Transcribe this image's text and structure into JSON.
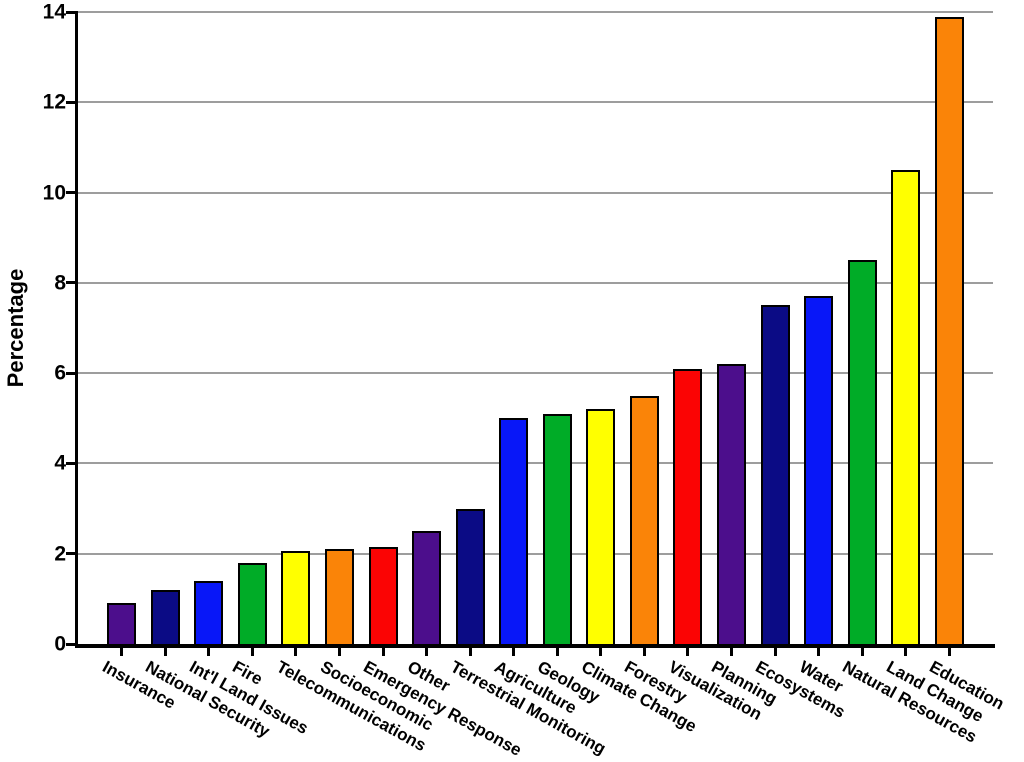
{
  "chart_data": {
    "type": "bar",
    "title": "",
    "xlabel": "",
    "ylabel": "Percentage",
    "ylim": [
      0,
      14
    ],
    "yticks": [
      0,
      2,
      4,
      6,
      8,
      10,
      12,
      14
    ],
    "grid": true,
    "legend": false,
    "categories": [
      "Insurance",
      "National Security",
      "Int'l Land Issues",
      "Fire",
      "Telecommunications",
      "Socioeconomic",
      "Emergency Response",
      "Other",
      "Terrestrial Monitoring",
      "Agriculture",
      "Geology",
      "Climate Change",
      "Forestry",
      "Visualization",
      "Planning",
      "Ecosystems",
      "Water",
      "Natural Resources",
      "Land Change",
      "Education"
    ],
    "values": [
      0.9,
      1.2,
      1.4,
      1.8,
      2.05,
      2.1,
      2.15,
      2.5,
      3.0,
      5.0,
      5.1,
      5.2,
      5.5,
      6.1,
      6.2,
      7.5,
      7.7,
      8.5,
      10.5,
      13.9
    ],
    "bar_colors": [
      "#4C0E8C",
      "#0B0B85",
      "#0817F8",
      "#00AC27",
      "#FFFF00",
      "#FA8408",
      "#FB0404",
      "#4C0E8C",
      "#0B0B85",
      "#0817F8",
      "#00AC27",
      "#FFFF00",
      "#FA8408",
      "#FB0404",
      "#4C0E8C",
      "#0B0B85",
      "#0817F8",
      "#00AC27",
      "#FFFF00",
      "#FA8408"
    ],
    "colors": {
      "palette_cycle": [
        "#4C0E8C",
        "#0B0B85",
        "#0817F8",
        "#00AC27",
        "#FFFF00",
        "#FA8408",
        "#FB0404"
      ],
      "gridline": "#9D9D9D",
      "axis": "#000000",
      "bar_border": "#000000",
      "background": "#FFFFFF",
      "text": "#000000"
    }
  }
}
